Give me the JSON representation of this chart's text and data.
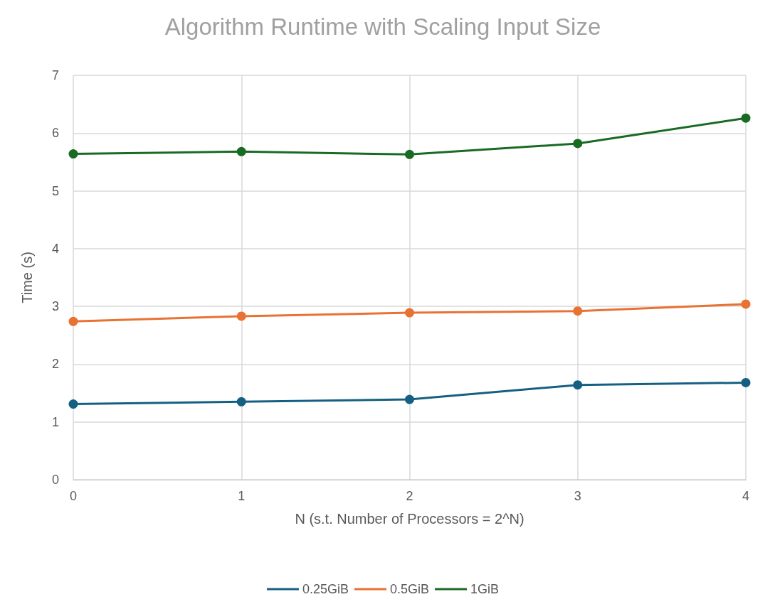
{
  "chart_data": {
    "type": "line",
    "title": "Algorithm Runtime with Scaling Input Size",
    "xlabel": "N (s.t. Number of Processors = 2^N)",
    "ylabel": "Time (s)",
    "x": [
      0,
      1,
      2,
      3,
      4
    ],
    "xlim": [
      0,
      4
    ],
    "xticks": [
      0,
      1,
      2,
      3,
      4
    ],
    "ylim": [
      0,
      7
    ],
    "yticks": [
      0,
      1,
      2,
      3,
      4,
      5,
      6,
      7
    ],
    "series": [
      {
        "name": "0.25GiB",
        "color": "#156082",
        "values": [
          1.31,
          1.35,
          1.39,
          1.64,
          1.68
        ]
      },
      {
        "name": "0.5GiB",
        "color": "#e97132",
        "values": [
          2.74,
          2.83,
          2.89,
          2.92,
          3.04
        ]
      },
      {
        "name": "1GiB",
        "color": "#196b24",
        "values": [
          5.64,
          5.68,
          5.63,
          5.82,
          6.26
        ]
      }
    ],
    "grid": true,
    "legend": "bottom",
    "marker": "circle",
    "line_style": "solid"
  }
}
